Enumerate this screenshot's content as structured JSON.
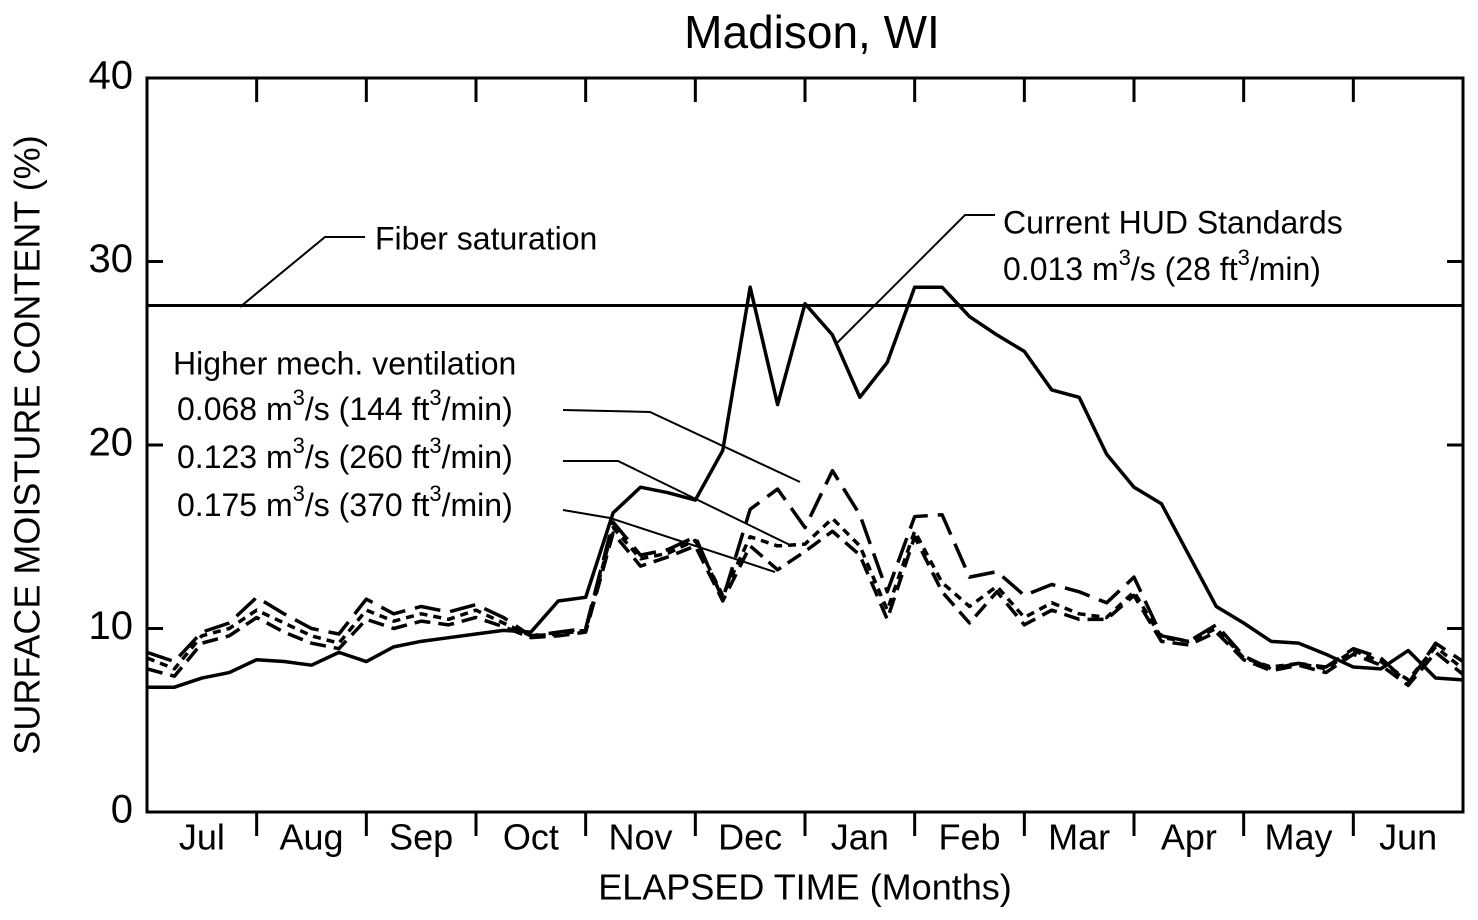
{
  "chart_data": {
    "type": "line",
    "title": "Madison, WI",
    "x_label": "ELAPSED TIME (Months)",
    "y_label": "SURFACE MOISTURE CONTENT (%)",
    "categories": [
      "Jul",
      "Aug",
      "Sep",
      "Oct",
      "Nov",
      "Dec",
      "Jan",
      "Feb",
      "Mar",
      "Apr",
      "May",
      "Jun"
    ],
    "xlim": [
      0,
      12
    ],
    "xticks": [
      1,
      2,
      3,
      4,
      5,
      6,
      7,
      8,
      9,
      10,
      11
    ],
    "ylim": [
      0,
      40
    ],
    "yticks": [
      0,
      10,
      20,
      30,
      40
    ],
    "x": [
      0,
      0.25,
      0.5,
      0.75,
      1,
      1.25,
      1.5,
      1.75,
      2,
      2.25,
      2.5,
      2.75,
      3,
      3.25,
      3.5,
      3.75,
      4,
      4.25,
      4.5,
      4.75,
      5,
      5.25,
      5.5,
      5.75,
      6,
      6.25,
      6.5,
      6.75,
      7,
      7.25,
      7.5,
      7.75,
      8,
      8.25,
      8.5,
      8.75,
      9,
      9.25,
      9.5,
      9.75,
      10,
      10.25,
      10.5,
      10.75,
      11,
      11.25,
      11.5,
      11.75,
      12
    ],
    "reference_line": {
      "label": "Fiber saturation",
      "value": 27.6
    },
    "group_label": "Higher mech. ventilation",
    "standard_label": "Current HUD Standards",
    "series": [
      {
        "name": [
          "0.013 m",
          "3",
          "/s (28 ft",
          "3",
          "/min)"
        ],
        "color": "#000000",
        "dash": "none",
        "values": [
          6.8,
          6.8,
          7.3,
          7.6,
          8.3,
          8.2,
          8.0,
          8.7,
          8.2,
          9.0,
          9.3,
          9.5,
          9.7,
          9.9,
          9.8,
          11.5,
          11.7,
          16.3,
          17.7,
          17.4,
          17.0,
          19.7,
          28.6,
          22.2,
          27.7,
          26.0,
          22.6,
          24.5,
          28.6,
          28.6,
          27.0,
          26.0,
          25.1,
          23.0,
          22.6,
          19.5,
          17.7,
          16.8,
          14.0,
          11.2,
          10.3,
          9.3,
          9.2,
          8.6,
          7.9,
          7.8,
          8.8,
          7.3,
          7.2
        ]
      },
      {
        "name": [
          "0.068 m",
          "3",
          "/s (144 ft",
          "3",
          "/min)"
        ],
        "color": "#000000",
        "dash": "26 10",
        "values": [
          8.7,
          8.2,
          9.8,
          10.3,
          11.7,
          10.8,
          10.0,
          9.7,
          11.6,
          10.8,
          11.2,
          10.9,
          11.3,
          10.6,
          9.6,
          9.8,
          10.0,
          15.8,
          14.0,
          14.3,
          15.0,
          11.6,
          16.5,
          17.6,
          15.5,
          18.6,
          16.2,
          12.0,
          16.1,
          16.2,
          12.8,
          13.1,
          11.8,
          12.4,
          12.0,
          11.4,
          12.8,
          9.6,
          9.3,
          10.2,
          8.5,
          7.8,
          8.1,
          7.9,
          8.9,
          8.4,
          7.0,
          9.2,
          8.2
        ]
      },
      {
        "name": [
          "0.123 m",
          "3",
          "/s (260 ft",
          "3",
          "/min)"
        ],
        "color": "#000000",
        "dash": "8 6",
        "values": [
          8.4,
          7.8,
          9.6,
          10.0,
          11.0,
          10.3,
          9.6,
          9.2,
          11.0,
          10.4,
          10.8,
          10.5,
          11.0,
          10.3,
          9.6,
          9.7,
          9.9,
          15.5,
          13.8,
          14.1,
          14.8,
          11.8,
          15.0,
          14.5,
          14.6,
          16.0,
          14.5,
          11.0,
          15.3,
          12.5,
          11.2,
          12.3,
          10.6,
          11.4,
          10.8,
          10.6,
          12.0,
          9.5,
          9.3,
          10.0,
          8.4,
          7.9,
          8.1,
          7.8,
          8.8,
          8.2,
          7.2,
          9.0,
          7.8
        ]
      },
      {
        "name": [
          "0.175 m",
          "3",
          "/s (370 ft",
          "3",
          "/min)"
        ],
        "color": "#000000",
        "dash": "16 8",
        "values": [
          7.8,
          7.4,
          9.2,
          9.6,
          10.6,
          9.8,
          9.2,
          8.9,
          10.5,
          10.0,
          10.4,
          10.2,
          10.6,
          10.1,
          9.5,
          9.6,
          9.8,
          15.2,
          13.4,
          13.9,
          14.5,
          11.5,
          14.5,
          13.2,
          14.2,
          15.3,
          14.0,
          10.5,
          15.0,
          12.0,
          10.3,
          12.0,
          10.2,
          11.0,
          10.5,
          10.5,
          11.8,
          9.3,
          9.1,
          9.8,
          8.3,
          7.7,
          8.0,
          7.6,
          8.6,
          8.0,
          6.9,
          8.7,
          7.5
        ]
      }
    ]
  }
}
